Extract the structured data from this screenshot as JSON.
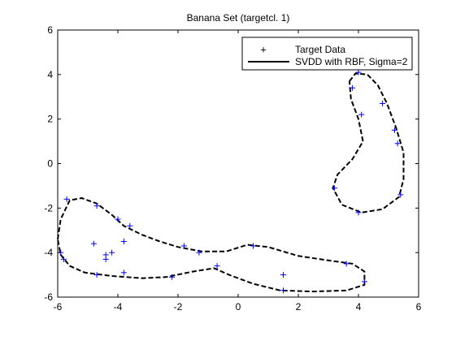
{
  "chart_data": {
    "type": "scatter",
    "title": "Banana Set (targetcl. 1)",
    "xlabel": "",
    "ylabel": "",
    "xlim": [
      -6,
      6
    ],
    "ylim": [
      -6,
      6
    ],
    "xticks": [
      -6,
      -4,
      -2,
      0,
      2,
      4,
      6
    ],
    "yticks": [
      -6,
      -4,
      -2,
      0,
      2,
      4,
      6
    ],
    "xtick_labels": [
      "-6",
      "-4",
      "-2",
      "0",
      "2",
      "4",
      "6"
    ],
    "ytick_labels": [
      "-6",
      "-4",
      "-2",
      "0",
      "2",
      "4",
      "6"
    ],
    "grid": false,
    "legend": {
      "placement": "top-right",
      "entries": [
        "Target Data",
        "SVDD with RBF, Sigma=2"
      ]
    },
    "colors": {
      "points": "#0000ff",
      "boundary": "#000000"
    },
    "series": [
      {
        "name": "Target Data",
        "type": "scatter",
        "points": [
          [
            -5.7,
            -1.6
          ],
          [
            -4.7,
            -1.9
          ],
          [
            -4.8,
            -3.6
          ],
          [
            -4.0,
            -2.5
          ],
          [
            -3.8,
            -3.5
          ],
          [
            -3.6,
            -2.8
          ],
          [
            -5.9,
            -4.0
          ],
          [
            -5.8,
            -4.3
          ],
          [
            -4.7,
            -5.0
          ],
          [
            -4.4,
            -4.3
          ],
          [
            -4.4,
            -4.1
          ],
          [
            -4.2,
            -4.0
          ],
          [
            -3.8,
            -4.9
          ],
          [
            -2.2,
            -5.1
          ],
          [
            -1.8,
            -3.7
          ],
          [
            -1.3,
            -4.0
          ],
          [
            -0.7,
            -4.6
          ],
          [
            0.5,
            -3.7
          ],
          [
            1.5,
            -5.0
          ],
          [
            1.5,
            -5.7
          ],
          [
            3.6,
            -4.5
          ],
          [
            4.2,
            -5.3
          ],
          [
            3.2,
            -1.1
          ],
          [
            4.0,
            -2.2
          ],
          [
            5.4,
            -1.4
          ],
          [
            5.3,
            0.9
          ],
          [
            5.2,
            1.5
          ],
          [
            4.8,
            2.7
          ],
          [
            4.1,
            2.2
          ],
          [
            3.8,
            3.4
          ],
          [
            4.0,
            4.1
          ]
        ]
      },
      {
        "name": "SVDD with RBF, Sigma=2",
        "type": "dashed-contour",
        "contours": [
          [
            [
              -6.0,
              -3.4
            ],
            [
              -5.9,
              -2.5
            ],
            [
              -5.6,
              -1.65
            ],
            [
              -5.2,
              -1.55
            ],
            [
              -4.7,
              -1.8
            ],
            [
              -4.2,
              -2.3
            ],
            [
              -3.8,
              -2.8
            ],
            [
              -3.2,
              -3.2
            ],
            [
              -2.6,
              -3.5
            ],
            [
              -2.0,
              -3.75
            ],
            [
              -1.2,
              -3.95
            ],
            [
              -0.4,
              -3.95
            ],
            [
              0.3,
              -3.65
            ],
            [
              1.0,
              -3.75
            ],
            [
              2.0,
              -4.15
            ],
            [
              3.0,
              -4.35
            ],
            [
              3.8,
              -4.5
            ],
            [
              4.2,
              -4.85
            ],
            [
              4.2,
              -5.45
            ],
            [
              3.6,
              -5.7
            ],
            [
              2.5,
              -5.75
            ],
            [
              1.4,
              -5.7
            ],
            [
              0.5,
              -5.4
            ],
            [
              -0.3,
              -5.0
            ],
            [
              -0.8,
              -4.7
            ],
            [
              -1.5,
              -4.85
            ],
            [
              -2.4,
              -5.1
            ],
            [
              -3.2,
              -5.15
            ],
            [
              -4.2,
              -5.05
            ],
            [
              -5.1,
              -4.9
            ],
            [
              -5.6,
              -4.6
            ],
            [
              -5.9,
              -4.1
            ],
            [
              -6.0,
              -3.4
            ]
          ],
          [
            [
              3.7,
              3.7
            ],
            [
              3.9,
              4.05
            ],
            [
              4.3,
              4.0
            ],
            [
              4.65,
              3.5
            ],
            [
              4.95,
              2.7
            ],
            [
              5.25,
              1.6
            ],
            [
              5.5,
              0.5
            ],
            [
              5.5,
              -0.7
            ],
            [
              5.35,
              -1.5
            ],
            [
              4.8,
              -2.05
            ],
            [
              4.1,
              -2.2
            ],
            [
              3.45,
              -1.85
            ],
            [
              3.15,
              -1.1
            ],
            [
              3.3,
              -0.5
            ],
            [
              3.8,
              0.2
            ],
            [
              4.15,
              1.0
            ],
            [
              4.0,
              2.0
            ],
            [
              3.75,
              2.9
            ],
            [
              3.7,
              3.7
            ]
          ]
        ]
      }
    ]
  }
}
